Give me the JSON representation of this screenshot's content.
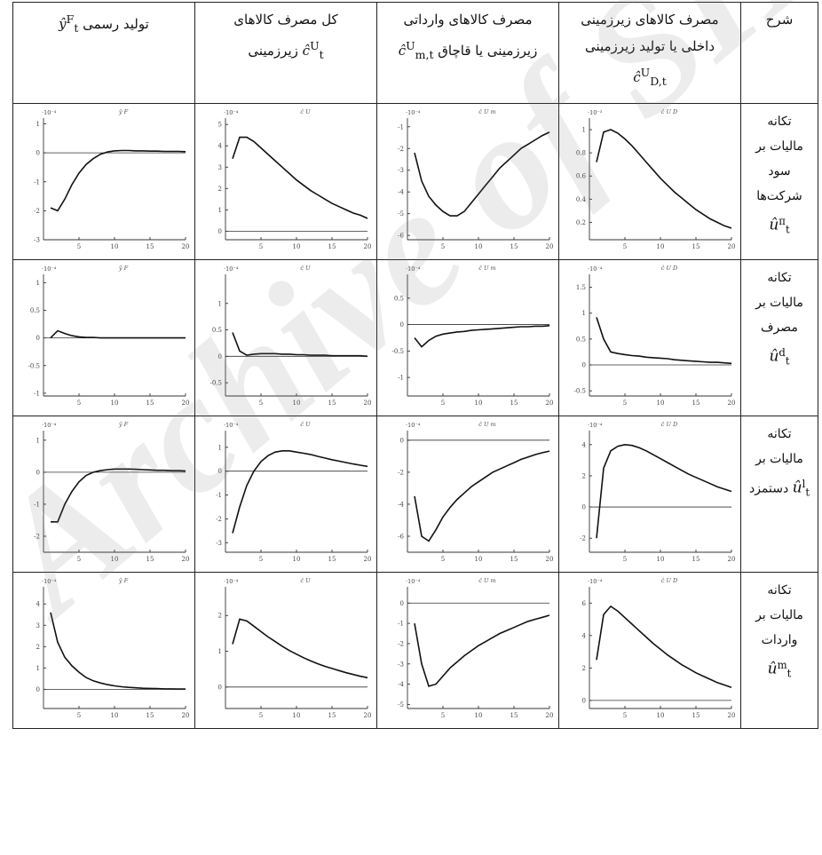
{
  "headers": {
    "description": "شرح",
    "domestic": [
      "مصرف کالاهای زیرزمینی",
      "داخلی یا تولید زیرزمینی",
      "ĉ",
      "U",
      "D,t"
    ],
    "imported": [
      "مصرف کالاهای وارداتی",
      "زیرزمینی یا قاچاق",
      "ĉ",
      "U",
      "m,t"
    ],
    "total": [
      "کل مصرف کالاهای",
      "زیرزمینی",
      "ĉ",
      "U",
      "t"
    ],
    "official": [
      "تولید رسمی",
      "ŷ",
      "F",
      "t"
    ]
  },
  "rows": [
    {
      "label": [
        "تکانه",
        "مالیات بر",
        "سود",
        "شرکت‌ها"
      ],
      "sym": "û",
      "sup": "π",
      "sub": "t"
    },
    {
      "label": [
        "تکانه",
        "مالیات بر",
        "مصرف"
      ],
      "sym": "û",
      "sup": "d",
      "sub": "t"
    },
    {
      "label": [
        "تکانه",
        "مالیات بر",
        "دستمزد"
      ],
      "sym": "û",
      "sup": "l",
      "sub": "t"
    },
    {
      "label": [
        "تکانه",
        "مالیات بر",
        "واردات"
      ],
      "sym": "û",
      "sup": "m",
      "sub": "t"
    }
  ],
  "watermark": "Archive of SID",
  "chart_data": [
    {
      "type": "line",
      "id": "r1-official",
      "title": "ŷ F",
      "magnitude": "·10⁻⁴",
      "xlim": [
        0,
        20
      ],
      "ylim": [
        -3,
        1.2
      ],
      "yticks": [
        -3,
        -2,
        -1,
        0,
        1
      ],
      "xticks": [
        5,
        10,
        15,
        20
      ],
      "x": [
        1,
        2,
        3,
        4,
        5,
        6,
        7,
        8,
        9,
        10,
        11,
        12,
        13,
        14,
        15,
        16,
        17,
        18,
        19,
        20
      ],
      "y": [
        -1.9,
        -2.0,
        -1.6,
        -1.1,
        -0.7,
        -0.4,
        -0.2,
        -0.05,
        0.03,
        0.07,
        0.08,
        0.08,
        0.07,
        0.07,
        0.06,
        0.06,
        0.05,
        0.05,
        0.05,
        0.04
      ]
    },
    {
      "type": "line",
      "id": "r1-total",
      "title": "ĉ U",
      "magnitude": "·10⁻⁴",
      "xlim": [
        0,
        20
      ],
      "ylim": [
        -0.4,
        5.3
      ],
      "yticks": [
        0,
        1,
        2,
        3,
        4,
        5
      ],
      "xticks": [
        5,
        10,
        15,
        20
      ],
      "x": [
        1,
        2,
        3,
        4,
        5,
        6,
        7,
        8,
        9,
        10,
        11,
        12,
        13,
        14,
        15,
        16,
        17,
        18,
        19,
        20
      ],
      "y": [
        3.4,
        4.4,
        4.4,
        4.2,
        3.9,
        3.6,
        3.3,
        3.0,
        2.7,
        2.4,
        2.15,
        1.9,
        1.7,
        1.5,
        1.3,
        1.15,
        1.0,
        0.85,
        0.75,
        0.6
      ]
    },
    {
      "type": "line",
      "id": "r1-imported",
      "title": "ĉ U m",
      "magnitude": "·10⁻⁴",
      "xlim": [
        0,
        20
      ],
      "ylim": [
        -6.2,
        -0.6
      ],
      "yticks": [
        -6,
        -5,
        -4,
        -3,
        -2,
        -1
      ],
      "xticks": [
        5,
        10,
        15,
        20
      ],
      "x": [
        1,
        2,
        3,
        4,
        5,
        6,
        7,
        8,
        9,
        10,
        11,
        12,
        13,
        14,
        15,
        16,
        17,
        18,
        19,
        20
      ],
      "y": [
        -2.2,
        -3.5,
        -4.2,
        -4.6,
        -4.9,
        -5.1,
        -5.1,
        -4.9,
        -4.5,
        -4.1,
        -3.7,
        -3.3,
        -2.9,
        -2.6,
        -2.3,
        -2.0,
        -1.8,
        -1.6,
        -1.4,
        -1.25
      ]
    },
    {
      "type": "line",
      "id": "r1-domestic",
      "title": "ĉ U D",
      "magnitude": "·10⁻³",
      "xlim": [
        0,
        20
      ],
      "ylim": [
        0.05,
        1.1
      ],
      "yticks": [
        0.2,
        0.4,
        0.6,
        0.8,
        1
      ],
      "xticks": [
        5,
        10,
        15,
        20
      ],
      "x": [
        1,
        2,
        3,
        4,
        5,
        6,
        7,
        8,
        9,
        10,
        11,
        12,
        13,
        14,
        15,
        16,
        17,
        18,
        19,
        20
      ],
      "y": [
        0.72,
        0.98,
        1.0,
        0.97,
        0.92,
        0.86,
        0.79,
        0.72,
        0.65,
        0.58,
        0.52,
        0.46,
        0.41,
        0.36,
        0.31,
        0.27,
        0.23,
        0.2,
        0.17,
        0.15
      ]
    },
    {
      "type": "line",
      "id": "r2-official",
      "title": "ŷ F",
      "magnitude": "·10⁻⁴",
      "xlim": [
        0,
        20
      ],
      "ylim": [
        -1.05,
        1.15
      ],
      "yticks": [
        -1,
        -0.5,
        0,
        0.5,
        1
      ],
      "xticks": [
        5,
        10,
        15,
        20
      ],
      "x": [
        1,
        2,
        3,
        4,
        5,
        6,
        7,
        8,
        9,
        10,
        11,
        12,
        13,
        14,
        15,
        16,
        17,
        18,
        19,
        20
      ],
      "y": [
        0.0,
        0.13,
        0.08,
        0.04,
        0.02,
        0.01,
        0.01,
        0.0,
        0.0,
        0.0,
        0.0,
        0.0,
        0.0,
        0.0,
        0.0,
        0.0,
        0.0,
        0.0,
        0.0,
        0.0
      ]
    },
    {
      "type": "line",
      "id": "r2-total",
      "title": "ĉ U",
      "magnitude": "·10⁻⁴",
      "xlim": [
        0,
        20
      ],
      "ylim": [
        -0.75,
        1.55
      ],
      "yticks": [
        -0.5,
        0,
        0.5,
        1
      ],
      "xticks": [
        5,
        10,
        15,
        20
      ],
      "x": [
        1,
        2,
        3,
        4,
        5,
        6,
        7,
        8,
        9,
        10,
        11,
        12,
        13,
        14,
        15,
        16,
        17,
        18,
        19,
        20
      ],
      "y": [
        0.45,
        0.1,
        0.02,
        0.04,
        0.05,
        0.05,
        0.05,
        0.04,
        0.04,
        0.03,
        0.03,
        0.02,
        0.02,
        0.02,
        0.01,
        0.01,
        0.01,
        0.01,
        0.01,
        0.0
      ]
    },
    {
      "type": "line",
      "id": "r2-imported",
      "title": "ĉ U m",
      "magnitude": "·10⁻⁴",
      "xlim": [
        0,
        20
      ],
      "ylim": [
        -1.35,
        0.95
      ],
      "yticks": [
        -1,
        -0.5,
        0,
        0.5
      ],
      "xticks": [
        5,
        10,
        15,
        20
      ],
      "x": [
        1,
        2,
        3,
        4,
        5,
        6,
        7,
        8,
        9,
        10,
        11,
        12,
        13,
        14,
        15,
        16,
        17,
        18,
        19,
        20
      ],
      "y": [
        -0.25,
        -0.42,
        -0.3,
        -0.22,
        -0.18,
        -0.16,
        -0.14,
        -0.13,
        -0.11,
        -0.1,
        -0.09,
        -0.08,
        -0.07,
        -0.06,
        -0.05,
        -0.04,
        -0.04,
        -0.03,
        -0.03,
        -0.02
      ]
    },
    {
      "type": "line",
      "id": "r2-domestic",
      "title": "ĉ U D",
      "magnitude": "·10⁻⁴",
      "xlim": [
        0,
        20
      ],
      "ylim": [
        -0.6,
        1.75
      ],
      "yticks": [
        -0.5,
        0,
        0.5,
        1,
        1.5
      ],
      "xticks": [
        5,
        10,
        15,
        20
      ],
      "x": [
        1,
        2,
        3,
        4,
        5,
        6,
        7,
        8,
        9,
        10,
        11,
        12,
        13,
        14,
        15,
        16,
        17,
        18,
        19,
        20
      ],
      "y": [
        0.92,
        0.5,
        0.25,
        0.22,
        0.2,
        0.18,
        0.17,
        0.15,
        0.14,
        0.13,
        0.12,
        0.1,
        0.09,
        0.08,
        0.07,
        0.06,
        0.05,
        0.05,
        0.04,
        0.03
      ]
    },
    {
      "type": "line",
      "id": "r3-official",
      "title": "ŷ F",
      "magnitude": "·10⁻⁴",
      "xlim": [
        0,
        20
      ],
      "ylim": [
        -2.5,
        1.3
      ],
      "yticks": [
        -2,
        -1,
        0,
        1
      ],
      "xticks": [
        5,
        10,
        15,
        20
      ],
      "x": [
        1,
        2,
        3,
        4,
        5,
        6,
        7,
        8,
        9,
        10,
        11,
        12,
        13,
        14,
        15,
        16,
        17,
        18,
        19,
        20
      ],
      "y": [
        -1.55,
        -1.55,
        -1.0,
        -0.6,
        -0.3,
        -0.1,
        0.0,
        0.05,
        0.08,
        0.1,
        0.1,
        0.1,
        0.09,
        0.08,
        0.07,
        0.06,
        0.06,
        0.05,
        0.05,
        0.04
      ]
    },
    {
      "type": "line",
      "id": "r3-total",
      "title": "ĉ U",
      "magnitude": "·10⁻⁴",
      "xlim": [
        0,
        20
      ],
      "ylim": [
        -3.4,
        1.7
      ],
      "yticks": [
        -3,
        -2,
        -1,
        0,
        1
      ],
      "xticks": [
        5,
        10,
        15,
        20
      ],
      "x": [
        1,
        2,
        3,
        4,
        5,
        6,
        7,
        8,
        9,
        10,
        11,
        12,
        13,
        14,
        15,
        16,
        17,
        18,
        19,
        20
      ],
      "y": [
        -2.6,
        -1.5,
        -0.6,
        0.0,
        0.4,
        0.65,
        0.8,
        0.85,
        0.85,
        0.8,
        0.75,
        0.7,
        0.62,
        0.55,
        0.48,
        0.42,
        0.36,
        0.3,
        0.25,
        0.2
      ]
    },
    {
      "type": "line",
      "id": "r3-imported",
      "title": "ĉ U m",
      "magnitude": "·10⁻⁴",
      "xlim": [
        0,
        20
      ],
      "ylim": [
        -7.0,
        0.6
      ],
      "yticks": [
        -6,
        -4,
        -2,
        0
      ],
      "xticks": [
        5,
        10,
        15,
        20
      ],
      "x": [
        1,
        2,
        3,
        4,
        5,
        6,
        7,
        8,
        9,
        10,
        11,
        12,
        13,
        14,
        15,
        16,
        17,
        18,
        19,
        20
      ],
      "y": [
        -3.5,
        -6.0,
        -6.3,
        -5.6,
        -4.8,
        -4.2,
        -3.7,
        -3.3,
        -2.9,
        -2.6,
        -2.3,
        -2.0,
        -1.8,
        -1.6,
        -1.4,
        -1.2,
        -1.05,
        -0.9,
        -0.78,
        -0.68
      ]
    },
    {
      "type": "line",
      "id": "r3-domestic",
      "title": "ĉ U D",
      "magnitude": "·10⁻⁴",
      "xlim": [
        0,
        20
      ],
      "ylim": [
        -2.9,
        4.9
      ],
      "yticks": [
        -2,
        0,
        2,
        4
      ],
      "xticks": [
        5,
        10,
        15,
        20
      ],
      "x": [
        1,
        2,
        3,
        4,
        5,
        6,
        7,
        8,
        9,
        10,
        11,
        12,
        13,
        14,
        15,
        16,
        17,
        18,
        19,
        20
      ],
      "y": [
        -2.0,
        2.5,
        3.6,
        3.9,
        4.0,
        3.95,
        3.8,
        3.6,
        3.35,
        3.1,
        2.85,
        2.6,
        2.35,
        2.1,
        1.9,
        1.7,
        1.5,
        1.3,
        1.15,
        1.0
      ]
    },
    {
      "type": "line",
      "id": "r4-official",
      "title": "ŷ F",
      "magnitude": "·10⁻⁴",
      "xlim": [
        0,
        20
      ],
      "ylim": [
        -0.9,
        4.8
      ],
      "yticks": [
        0,
        1,
        2,
        3,
        4
      ],
      "xticks": [
        5,
        10,
        15,
        20
      ],
      "x": [
        1,
        2,
        3,
        4,
        5,
        6,
        7,
        8,
        9,
        10,
        11,
        12,
        13,
        14,
        15,
        16,
        17,
        18,
        19,
        20
      ],
      "y": [
        3.6,
        2.2,
        1.5,
        1.1,
        0.8,
        0.55,
        0.4,
        0.3,
        0.22,
        0.16,
        0.12,
        0.09,
        0.07,
        0.05,
        0.04,
        0.03,
        0.02,
        0.02,
        0.01,
        0.01
      ]
    },
    {
      "type": "line",
      "id": "r4-total",
      "title": "ĉ U",
      "magnitude": "·10⁻⁴",
      "xlim": [
        0,
        20
      ],
      "ylim": [
        -0.6,
        2.8
      ],
      "yticks": [
        0,
        1,
        2
      ],
      "xticks": [
        5,
        10,
        15,
        20
      ],
      "x": [
        1,
        2,
        3,
        4,
        5,
        6,
        7,
        8,
        9,
        10,
        11,
        12,
        13,
        14,
        15,
        16,
        17,
        18,
        19,
        20
      ],
      "y": [
        1.2,
        1.9,
        1.85,
        1.7,
        1.55,
        1.4,
        1.27,
        1.14,
        1.02,
        0.92,
        0.82,
        0.73,
        0.65,
        0.58,
        0.52,
        0.46,
        0.4,
        0.35,
        0.3,
        0.26
      ]
    },
    {
      "type": "line",
      "id": "r4-imported",
      "title": "ĉ U m",
      "magnitude": "·10⁻⁴",
      "xlim": [
        0,
        20
      ],
      "ylim": [
        -5.2,
        0.8
      ],
      "yticks": [
        -5,
        -4,
        -3,
        -2,
        -1,
        0
      ],
      "xticks": [
        5,
        10,
        15,
        20
      ],
      "x": [
        1,
        2,
        3,
        4,
        5,
        6,
        7,
        8,
        9,
        10,
        11,
        12,
        13,
        14,
        15,
        16,
        17,
        18,
        19,
        20
      ],
      "y": [
        -1.0,
        -3.0,
        -4.1,
        -4.0,
        -3.6,
        -3.2,
        -2.9,
        -2.6,
        -2.35,
        -2.1,
        -1.9,
        -1.7,
        -1.5,
        -1.35,
        -1.2,
        -1.05,
        -0.9,
        -0.8,
        -0.7,
        -0.6
      ]
    },
    {
      "type": "line",
      "id": "r4-domestic",
      "title": "ĉ U D",
      "magnitude": "·10⁻⁴",
      "xlim": [
        0,
        20
      ],
      "ylim": [
        -0.5,
        7.0
      ],
      "yticks": [
        0,
        2,
        4,
        6
      ],
      "xticks": [
        5,
        10,
        15,
        20
      ],
      "x": [
        1,
        2,
        3,
        4,
        5,
        6,
        7,
        8,
        9,
        10,
        11,
        12,
        13,
        14,
        15,
        16,
        17,
        18,
        19,
        20
      ],
      "y": [
        2.5,
        5.3,
        5.8,
        5.5,
        5.1,
        4.7,
        4.3,
        3.9,
        3.5,
        3.15,
        2.8,
        2.5,
        2.2,
        1.95,
        1.7,
        1.5,
        1.3,
        1.1,
        0.95,
        0.8
      ]
    }
  ]
}
